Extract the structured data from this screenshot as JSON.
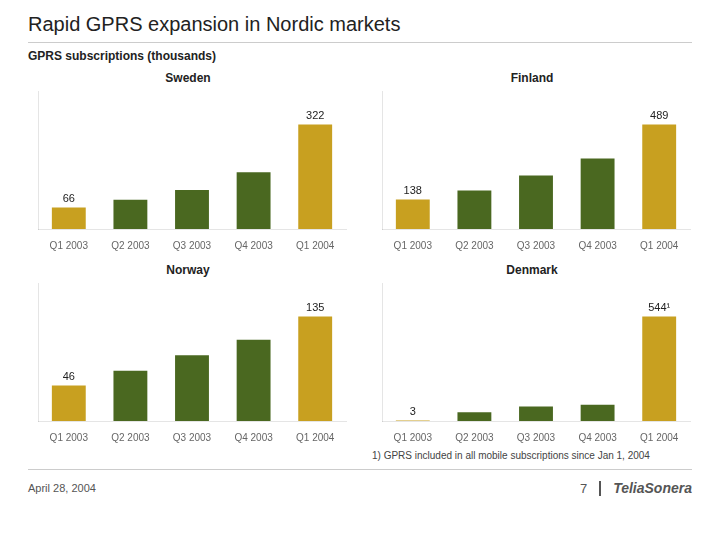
{
  "title": "Rapid GPRS expansion in Nordic markets",
  "subtitle": "GPRS subscriptions (thousands)",
  "annotations": [
    "1) GPRS included in all mobile subscriptions since Jan 1, 2004",
    "April 28, 2004",
    "7",
    "TeliaSonera"
  ],
  "chart_data": [
    {
      "type": "bar",
      "title": "Sweden",
      "categories": [
        "Q1 2003",
        "Q2 2003",
        "Q3 2003",
        "Q4 2003",
        "Q1 2004"
      ],
      "values": [
        66,
        90,
        120,
        175,
        322
      ],
      "colors": [
        "#c8a020",
        "#4a6820",
        "#4a6820",
        "#4a6820",
        "#c8a020"
      ],
      "ylim": [
        0,
        425.04
      ],
      "grid": false,
      "tick_labels": "x",
      "data_labels": true,
      "value_labels": [
        "66",
        null,
        null,
        null,
        "322"
      ]
    },
    {
      "type": "bar",
      "title": "Finland",
      "categories": [
        "Q1 2003",
        "Q2 2003",
        "Q3 2003",
        "Q4 2003",
        "Q1 2004"
      ],
      "values": [
        138,
        180,
        250,
        330,
        489
      ],
      "colors": [
        "#c8a020",
        "#4a6820",
        "#4a6820",
        "#4a6820",
        "#c8a020"
      ],
      "ylim": [
        0,
        645.48
      ],
      "grid": false,
      "tick_labels": "x",
      "data_labels": true,
      "value_labels": [
        "138",
        null,
        null,
        null,
        "489"
      ]
    },
    {
      "type": "bar",
      "title": "Norway",
      "categories": [
        "Q1 2003",
        "Q2 2003",
        "Q3 2003",
        "Q4 2003",
        "Q1 2004"
      ],
      "values": [
        46,
        65,
        85,
        105,
        135
      ],
      "colors": [
        "#c8a020",
        "#4a6820",
        "#4a6820",
        "#4a6820",
        "#c8a020"
      ],
      "ylim": [
        0,
        178.2
      ],
      "grid": false,
      "tick_labels": "x",
      "data_labels": true,
      "value_labels": [
        "46",
        null,
        null,
        null,
        "135"
      ]
    },
    {
      "type": "bar",
      "title": "Denmark",
      "categories": [
        "Q1 2003",
        "Q2 2003",
        "Q3 2003",
        "Q4 2003",
        "Q1 2004"
      ],
      "values": [
        3,
        45,
        75,
        85,
        544
      ],
      "colors": [
        "#c8a020",
        "#4a6820",
        "#4a6820",
        "#4a6820",
        "#c8a020"
      ],
      "ylim": [
        0,
        718.08
      ],
      "grid": false,
      "tick_labels": "x",
      "data_labels": true,
      "value_labels": [
        "3",
        null,
        null,
        null,
        "544¹"
      ]
    }
  ]
}
